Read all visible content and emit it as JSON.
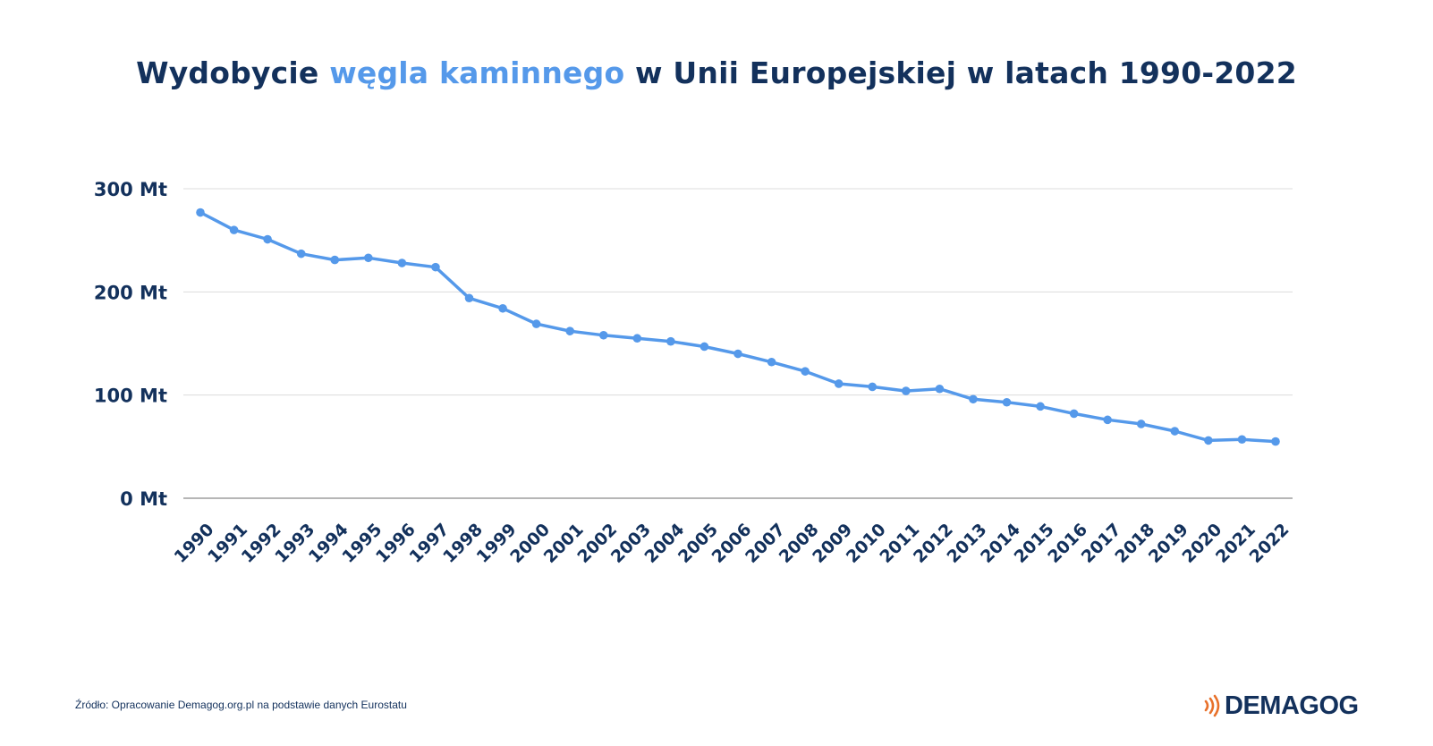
{
  "title": {
    "part1": "Wydobycie ",
    "accent": "węgla kaminnego",
    "part2": " w Unii Europejskiej w latach 1990-2022"
  },
  "source": "Źródło: Opracowanie Demagog.org.pl na podstawie danych Eurostatu",
  "logo": {
    "text": "DEMAGOG",
    "mark_color": "#e8712b"
  },
  "colors": {
    "title": "#13315c",
    "accent": "#5599ea",
    "line": "#5599ea",
    "grid": "#dcdcdc",
    "axis": "#8a8a8a"
  },
  "chart_data": {
    "type": "line",
    "title": "Wydobycie węgla kaminnego w Unii Europejskiej w latach 1990-2022",
    "xlabel": "",
    "ylabel": "",
    "ylim": [
      0,
      300
    ],
    "grid": true,
    "legend": "none",
    "yticks": [
      {
        "value": 0,
        "label": "0 Mt"
      },
      {
        "value": 100,
        "label": "100 Mt"
      },
      {
        "value": 200,
        "label": "200 Mt"
      },
      {
        "value": 300,
        "label": "300 Mt"
      }
    ],
    "x": [
      "1990",
      "1991",
      "1992",
      "1993",
      "1994",
      "1995",
      "1996",
      "1997",
      "1998",
      "1999",
      "2000",
      "2001",
      "2002",
      "2003",
      "2004",
      "2005",
      "2006",
      "2007",
      "2008",
      "2009",
      "2010",
      "2011",
      "2012",
      "2013",
      "2014",
      "2015",
      "2016",
      "2017",
      "2018",
      "2019",
      "2020",
      "2021",
      "2022"
    ],
    "series": [
      {
        "values": [
          277,
          260,
          251,
          237,
          231,
          233,
          228,
          224,
          194,
          184,
          169,
          162,
          158,
          155,
          152,
          147,
          140,
          132,
          123,
          111,
          108,
          104,
          106,
          96,
          93,
          89,
          82,
          76,
          72,
          65,
          56,
          57,
          55
        ]
      }
    ]
  }
}
